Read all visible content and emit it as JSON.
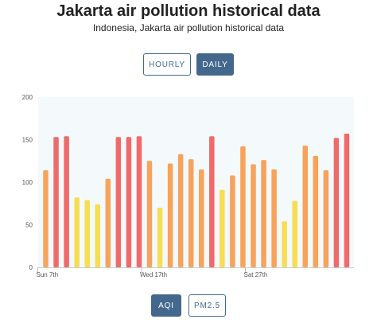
{
  "header": {
    "title": "Jakarta air pollution historical data",
    "subtitle": "Indonesia, Jakarta air pollution historical data"
  },
  "period_toggle": {
    "hourly_label": "HOURLY",
    "daily_label": "DAILY",
    "selected": "DAILY"
  },
  "metric_toggle": {
    "aqi_label": "AQI",
    "pm25_label": "PM2.5",
    "selected": "AQI"
  },
  "colors": {
    "plot_background": "#f4f9fb",
    "good_yellow": "#f7dd52",
    "moderate_orange": "#f7a35c",
    "unhealthy_red": "#f06a6a",
    "button_blue": "#44688d"
  },
  "chart_data": {
    "type": "bar",
    "title": "",
    "xlabel": "",
    "ylabel": "",
    "ylim": [
      0,
      200
    ],
    "yticks": [
      0,
      50,
      100,
      150,
      200
    ],
    "x_tick_labels": [
      {
        "index": 0,
        "label": "Sun 7th"
      },
      {
        "index": 10,
        "label": "Wed 17th"
      },
      {
        "index": 20,
        "label": "Sat 27th"
      }
    ],
    "values": [
      114,
      153,
      154,
      82,
      79,
      74,
      104,
      153,
      153,
      154,
      125,
      70,
      122,
      133,
      127,
      115,
      154,
      91,
      108,
      142,
      121,
      126,
      115,
      54,
      78,
      143,
      131,
      114,
      152,
      157
    ],
    "categories": [
      "Sun 7th",
      "",
      "",
      "",
      "",
      "",
      "",
      "",
      "",
      "",
      "Wed 17th",
      "",
      "",
      "",
      "",
      "",
      "",
      "",
      "",
      "",
      "Sat 27th",
      "",
      "",
      "",
      "",
      "",
      "",
      "",
      "",
      ""
    ],
    "color_thresholds": [
      {
        "max": 100,
        "color": "#f7dd52"
      },
      {
        "max": 150,
        "color": "#f7a35c"
      },
      {
        "max": 300,
        "color": "#f06a6a"
      }
    ],
    "grid": false,
    "legend": "none"
  }
}
